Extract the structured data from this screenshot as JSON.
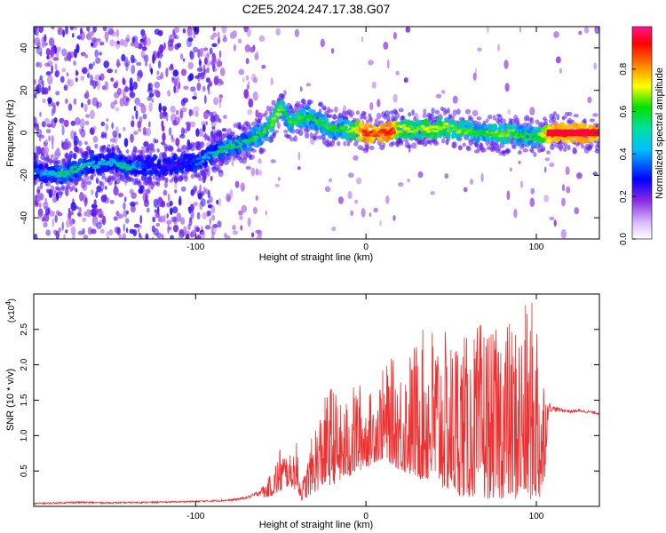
{
  "title": "C2E5.2024.247.17.38.G07",
  "chart_data": [
    {
      "type": "heatmap",
      "xlabel": "Height of straight line (km)",
      "ylabel": "Frequency (Hz)",
      "xlim": [
        -195,
        137
      ],
      "ylim": [
        -50,
        50
      ],
      "xticks": [
        -100,
        0,
        100
      ],
      "xtick_labels": [
        "-100",
        "0",
        "100"
      ],
      "yticks": [
        -40,
        -20,
        0,
        20,
        40
      ],
      "ytick_labels": [
        "-40",
        "-20",
        "0",
        "20",
        "40"
      ],
      "colorbar": {
        "label": "Normalized spectral amplitude",
        "range": [
          0,
          1
        ],
        "ticks": [
          0.0,
          0.2,
          0.4,
          0.6,
          0.8
        ],
        "tick_labels": [
          "0.0",
          "0.2",
          "0.4",
          "0.6",
          "0.8"
        ],
        "colormap": [
          "#e8d4ff",
          "#8a2be2",
          "#0000ff",
          "#00bfff",
          "#00e000",
          "#ffff00",
          "#ff8000",
          "#ff0000",
          "#ff1493"
        ]
      },
      "ridge": {
        "x": [
          -195,
          -180,
          -170,
          -160,
          -150,
          -140,
          -130,
          -120,
          -110,
          -100,
          -95,
          -90,
          -85,
          -80,
          -75,
          -70,
          -65,
          -60,
          -55,
          -52,
          -50,
          -48,
          -45,
          -40,
          -35,
          -30,
          -25,
          -20,
          -15,
          -10,
          -5,
          0,
          5,
          10,
          15,
          20,
          25,
          30,
          35,
          40,
          45,
          50,
          55,
          60,
          65,
          70,
          75,
          80,
          85,
          90,
          95,
          100,
          105,
          110,
          120,
          130,
          137
        ],
        "y": [
          -18,
          -20,
          -17,
          -15,
          -14,
          -16,
          -15,
          -16,
          -15,
          -14,
          -12,
          -10,
          -8,
          -6,
          -5,
          -4,
          -2,
          0,
          5,
          8,
          12,
          10,
          5,
          6,
          8,
          6,
          4,
          2,
          2,
          1,
          1,
          0,
          0,
          0,
          1,
          2,
          2,
          1,
          2,
          2,
          3,
          2,
          1,
          1,
          0,
          0,
          0,
          -1,
          0,
          -1,
          -2,
          -2,
          -1,
          0,
          0,
          0,
          0
        ],
        "amplitude": [
          0.3,
          0.45,
          0.45,
          0.4,
          0.4,
          0.45,
          0.25,
          0.2,
          0.2,
          0.3,
          0.35,
          0.4,
          0.45,
          0.45,
          0.45,
          0.45,
          0.5,
          0.5,
          0.55,
          0.6,
          0.55,
          0.5,
          0.5,
          0.55,
          0.5,
          0.5,
          0.5,
          0.5,
          0.5,
          0.55,
          0.65,
          0.9,
          0.8,
          0.85,
          0.9,
          0.6,
          0.6,
          0.55,
          0.6,
          0.6,
          0.6,
          0.55,
          0.55,
          0.55,
          0.5,
          0.5,
          0.55,
          0.55,
          0.55,
          0.5,
          0.5,
          0.5,
          0.7,
          0.85,
          0.85,
          0.85,
          0.85
        ]
      }
    },
    {
      "type": "line",
      "xlabel": "Height of straight line (km)",
      "ylabel": "SNR (10 * v/v)",
      "y_scale_label": "(x10",
      "y_scale_exponent": "4",
      "y_scale_suffix": ")",
      "xlim": [
        -195,
        137
      ],
      "ylim": [
        0,
        3.0
      ],
      "xticks": [
        -100,
        0,
        100
      ],
      "xtick_labels": [
        "-100",
        "0",
        "100"
      ],
      "yticks": [
        0.5,
        1.0,
        1.5,
        2.0,
        2.5
      ],
      "ytick_labels": [
        "0.5",
        "1.0",
        "1.5",
        "2.0",
        "2.5"
      ],
      "color": "#ee3030",
      "series": [
        {
          "x": [
            -195,
            -170,
            -150,
            -120,
            -100,
            -80,
            -75,
            -70,
            -65,
            -60,
            -55,
            -50,
            -45,
            -40,
            -38,
            -35,
            -30,
            -25,
            -20,
            -15,
            -10,
            -5,
            0,
            5,
            10,
            15,
            20,
            25,
            30,
            35,
            40,
            45,
            50,
            55,
            60,
            65,
            70,
            75,
            80,
            85,
            90,
            95,
            100,
            104,
            107,
            110,
            115,
            120,
            125,
            130,
            137
          ],
          "envelope_low": [
            0.02,
            0.03,
            0.03,
            0.04,
            0.05,
            0.06,
            0.07,
            0.09,
            0.1,
            0.12,
            0.15,
            0.2,
            0.3,
            0.2,
            0.08,
            0.12,
            0.2,
            0.28,
            0.3,
            0.35,
            0.4,
            0.48,
            0.55,
            0.62,
            0.66,
            0.6,
            0.5,
            0.45,
            0.4,
            0.35,
            0.3,
            0.25,
            0.2,
            0.15,
            0.12,
            0.15,
            0.1,
            0.12,
            0.1,
            0.12,
            0.08,
            0.1,
            0.08,
            0.06,
            1.28,
            1.3,
            1.32,
            1.3,
            1.32,
            1.3,
            1.28
          ],
          "envelope_high": [
            0.05,
            0.07,
            0.06,
            0.07,
            0.08,
            0.1,
            0.12,
            0.14,
            0.2,
            0.3,
            0.5,
            0.9,
            0.7,
            0.95,
            0.3,
            0.6,
            1.2,
            1.5,
            1.8,
            1.45,
            1.55,
            1.85,
            1.55,
            1.7,
            1.95,
            2.1,
            2.0,
            2.2,
            2.4,
            2.55,
            2.65,
            2.5,
            2.4,
            2.65,
            2.35,
            2.55,
            2.75,
            2.4,
            2.95,
            2.6,
            2.7,
            2.9,
            3.0,
            2.1,
            1.48,
            1.42,
            1.38,
            1.36,
            1.37,
            1.36,
            1.33
          ]
        }
      ]
    }
  ]
}
